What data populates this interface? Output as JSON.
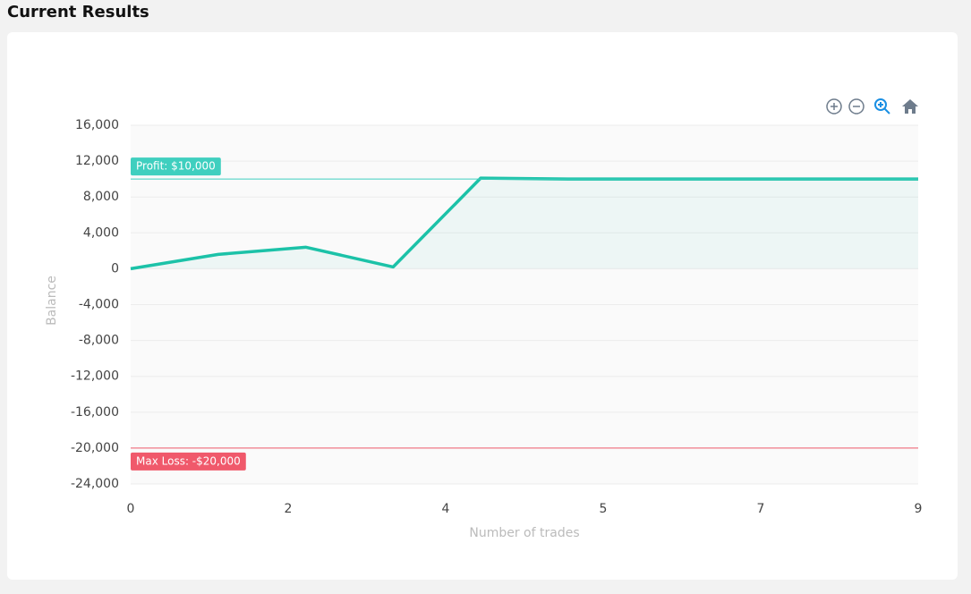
{
  "chart_data": {
    "type": "area",
    "title": "Current Results",
    "x_label": "Number of trades",
    "y_label": "Balance",
    "x": [
      0,
      1,
      2,
      3,
      4,
      5,
      6,
      7,
      8,
      9
    ],
    "values": [
      0,
      1600,
      2400,
      200,
      10100,
      10000,
      10000,
      10000,
      10000,
      10000
    ],
    "color": "#1cc2a8",
    "xlim": [
      0,
      9
    ],
    "ylim": [
      -24000,
      16000
    ],
    "xticks": [
      0,
      {
        "value": 1.8,
        "label": "2"
      },
      {
        "value": 3.6,
        "label": "4"
      },
      {
        "value": 5.4,
        "label": "5"
      },
      {
        "value": 7.2,
        "label": "7"
      },
      9
    ],
    "yticks": [
      {
        "value": 16000,
        "label": "16,000"
      },
      {
        "value": 12000,
        "label": "12,000"
      },
      {
        "value": 8000,
        "label": "8,000"
      },
      {
        "value": 4000,
        "label": "4,000"
      },
      0,
      {
        "value": -4000,
        "label": "-4,000"
      },
      {
        "value": -8000,
        "label": "-8,000"
      },
      {
        "value": -12000,
        "label": "-12,000"
      },
      {
        "value": -16000,
        "label": "-16,000"
      },
      {
        "value": -20000,
        "label": "-20,000"
      },
      {
        "value": -24000,
        "label": "-24,000"
      }
    ],
    "grid": true,
    "annotations": [
      {
        "value": 10000,
        "label": "Profit: $10,000",
        "color": "#3fcfbf"
      },
      {
        "value": -20000,
        "label": "Max Loss: -$20,000",
        "color": "#f0596b"
      }
    ]
  }
}
